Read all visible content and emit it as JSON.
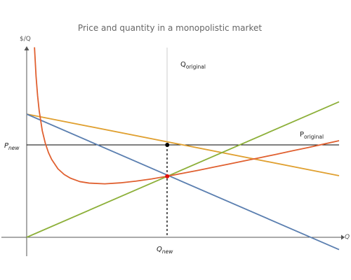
{
  "chart_data": {
    "type": "line",
    "title": "Price and quantity in a monopolistic market",
    "ylabel": "$/Q",
    "xlabel": "Q",
    "xlim": [
      0,
      1
    ],
    "ylim": [
      -0.05,
      0.8
    ],
    "grid": false,
    "legend": "none",
    "series": [
      {
        "x": [
          0,
          1
        ],
        "y": [
          0.5,
          0.25
        ],
        "color": "#e0a030"
      },
      {
        "x": [
          0,
          1
        ],
        "y": [
          0.5,
          -0.05
        ],
        "color": "#5b7fb0"
      },
      {
        "x": [
          0,
          1
        ],
        "y": [
          0.0,
          0.55
        ],
        "color": "#8db03a"
      },
      {
        "x": [
          0.025,
          0.03,
          0.035,
          0.04,
          0.05,
          0.06,
          0.07,
          0.08,
          0.1,
          0.12,
          0.14,
          0.17,
          0.2,
          0.25,
          0.3,
          0.35,
          0.4,
          0.45,
          0.5,
          0.55,
          0.6,
          0.65,
          0.7,
          0.75,
          0.8,
          0.85,
          0.9,
          0.95,
          1.0
        ],
        "y": [
          0.771,
          0.654,
          0.574,
          0.514,
          0.432,
          0.38,
          0.343,
          0.316,
          0.278,
          0.255,
          0.24,
          0.226,
          0.22,
          0.217,
          0.221,
          0.228,
          0.237,
          0.248,
          0.26,
          0.272,
          0.285,
          0.298,
          0.311,
          0.324,
          0.337,
          0.351,
          0.364,
          0.378,
          0.392
        ],
        "color": "#e06030"
      }
    ],
    "reference": {
      "p_new": 0.375,
      "q_new": 0.45,
      "p_label": "P",
      "p_label_sub": "new",
      "q_label": "Q",
      "q_label_sub": "new",
      "q_original_label": "Q",
      "q_original_sub": "original",
      "p_original_label": "P",
      "p_original_sub": "original"
    },
    "points": [
      {
        "x": 0.45,
        "y": 0.375,
        "color": "#000000"
      },
      {
        "x": 0.45,
        "y": 0.2475,
        "color": "#e01010"
      }
    ]
  }
}
